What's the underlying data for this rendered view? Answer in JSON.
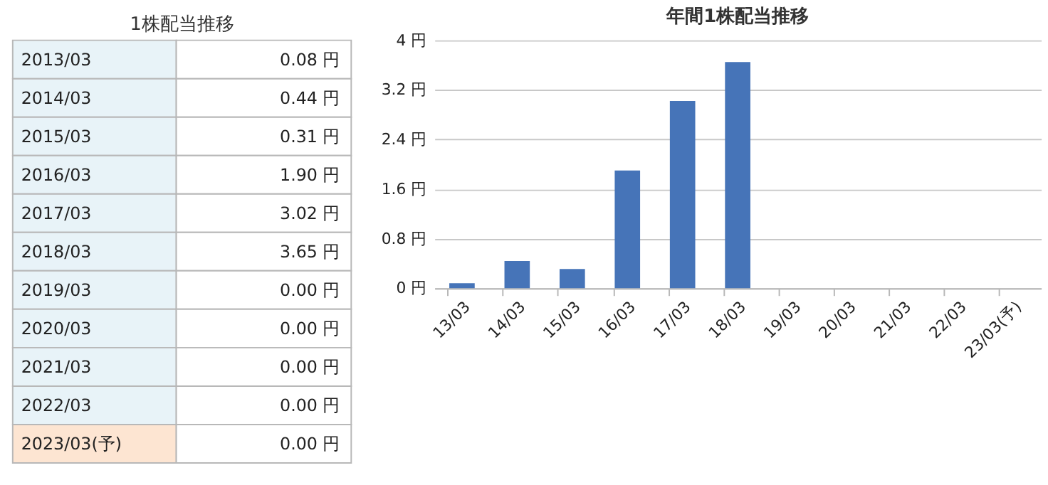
{
  "chart_data": [
    {
      "type": "other",
      "title": "1株配当推移",
      "categories": [
        "2013/03",
        "2014/03",
        "2015/03",
        "2016/03",
        "2017/03",
        "2018/03",
        "2019/03",
        "2020/03",
        "2021/03",
        "2022/03",
        "2023/03(予)"
      ],
      "value_labels": [
        "0.08 円",
        "0.44 円",
        "0.31 円",
        "1.90 円",
        "3.02 円",
        "3.65 円",
        "0.00 円",
        "0.00 円",
        "0.00 円",
        "0.00 円",
        "0.00 円"
      ],
      "colors": [
        "#e8f3f8",
        "#e8f3f8",
        "#e8f3f8",
        "#e8f3f8",
        "#e8f3f8",
        "#e8f3f8",
        "#e8f3f8",
        "#e8f3f8",
        "#e8f3f8",
        "#e8f3f8",
        "#fde5d2"
      ]
    },
    {
      "type": "bar",
      "title": "年間1株配当推移",
      "categories": [
        "13/03",
        "14/03",
        "15/03",
        "16/03",
        "17/03",
        "18/03",
        "19/03",
        "20/03",
        "21/03",
        "22/03",
        "23/03(予)"
      ],
      "values": [
        0.08,
        0.44,
        0.31,
        1.9,
        3.02,
        3.65,
        0.0,
        0.0,
        0.0,
        0.0,
        0.0
      ],
      "color": "#4674b8",
      "ylim": [
        0,
        4
      ],
      "yticks": [
        {
          "value": 0,
          "label": "0 円"
        },
        {
          "value": 0.8,
          "label": "0.8 円"
        },
        {
          "value": 1.6,
          "label": "1.6 円"
        },
        {
          "value": 2.4,
          "label": "2.4 円"
        },
        {
          "value": 3.2,
          "label": "3.2 円"
        },
        {
          "value": 4,
          "label": "4 円"
        }
      ],
      "grid": "y"
    }
  ]
}
